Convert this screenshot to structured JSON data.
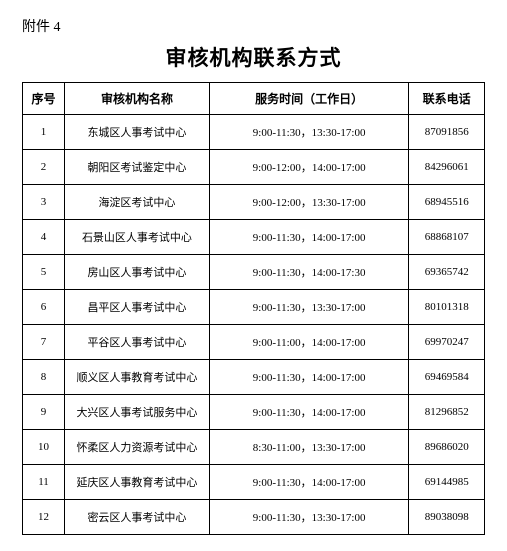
{
  "attachment_label": "附件 4",
  "page_title": "审核机构联系方式",
  "table": {
    "columns": [
      "序号",
      "审核机构名称",
      "服务时间（工作日）",
      "联系电话"
    ],
    "rows": [
      [
        "1",
        "东城区人事考试中心",
        "9:00-11:30，13:30-17:00",
        "87091856"
      ],
      [
        "2",
        "朝阳区考试鉴定中心",
        "9:00-12:00，14:00-17:00",
        "84296061"
      ],
      [
        "3",
        "海淀区考试中心",
        "9:00-12:00，13:30-17:00",
        "68945516"
      ],
      [
        "4",
        "石景山区人事考试中心",
        "9:00-11:30，14:00-17:00",
        "68868107"
      ],
      [
        "5",
        "房山区人事考试中心",
        "9:00-11:30，14:00-17:30",
        "69365742"
      ],
      [
        "6",
        "昌平区人事考试中心",
        "9:00-11:30，13:30-17:00",
        "80101318"
      ],
      [
        "7",
        "平谷区人事考试中心",
        "9:00-11:00，14:00-17:00",
        "69970247"
      ],
      [
        "8",
        "顺义区人事教育考试中心",
        "9:00-11:30，14:00-17:00",
        "69469584"
      ],
      [
        "9",
        "大兴区人事考试服务中心",
        "9:00-11:30，14:00-17:00",
        "81296852"
      ],
      [
        "10",
        "怀柔区人力资源考试中心",
        "8:30-11:00，13:30-17:00",
        "89686020"
      ],
      [
        "11",
        "延庆区人事教育考试中心",
        "9:00-11:30，14:00-17:00",
        "69144985"
      ],
      [
        "12",
        "密云区人事考试中心",
        "9:00-11:30，13:30-17:00",
        "89038098"
      ]
    ]
  }
}
